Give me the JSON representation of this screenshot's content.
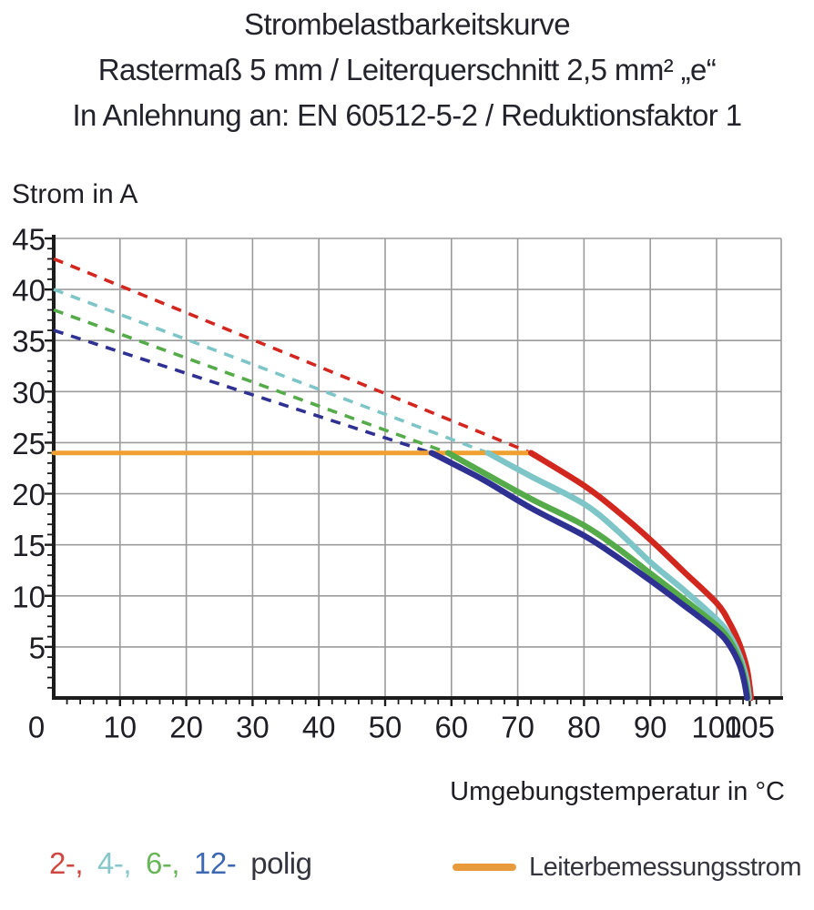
{
  "title": {
    "line1": "Strombelastbarkeitskurve",
    "line2": "Rastermaß 5 mm / Leiterquerschnitt 2,5 mm² „e“",
    "line3": "In Anlehnung an: EN 60512-5-2 / Reduktionsfaktor 1"
  },
  "chart_data": {
    "type": "line",
    "title": "Strombelastbarkeitskurve",
    "ylabel": "Strom in A",
    "xlabel": "Umgebungstemperatur in °C",
    "xlim": [
      0,
      110
    ],
    "ylim": [
      0,
      45
    ],
    "x_ticks": [
      10,
      20,
      30,
      40,
      50,
      60,
      70,
      80,
      90,
      100,
      105
    ],
    "y_ticks": [
      0,
      5,
      10,
      15,
      20,
      25,
      30,
      35,
      40,
      45
    ],
    "grid": true,
    "grid_color": "#9b9b9b",
    "axis_color": "#1c1c1c",
    "x_minor_tick_step": 2,
    "y_minor_tick_step": 1,
    "series": [
      {
        "name": "2-polig",
        "color": "#d2271f",
        "dashed": [
          [
            0,
            43
          ],
          [
            72,
            24
          ]
        ],
        "solid": [
          [
            72,
            24
          ],
          [
            80,
            20.8
          ],
          [
            85,
            18.3
          ],
          [
            90,
            15.5
          ],
          [
            95,
            12.4
          ],
          [
            100,
            9.3
          ],
          [
            102,
            7.3
          ],
          [
            103.5,
            5.2
          ],
          [
            104.6,
            2.8
          ],
          [
            105.2,
            0
          ]
        ]
      },
      {
        "name": "4-polig",
        "color": "#7ec5c8",
        "dashed": [
          [
            0,
            40
          ],
          [
            65.5,
            24
          ]
        ],
        "solid": [
          [
            65.5,
            24
          ],
          [
            72,
            21.7
          ],
          [
            80,
            19.0
          ],
          [
            85,
            16.4
          ],
          [
            90,
            13.3
          ],
          [
            95,
            10.6
          ],
          [
            100,
            7.7
          ],
          [
            102,
            6.1
          ],
          [
            103.5,
            4.1
          ],
          [
            104.5,
            1.9
          ],
          [
            104.9,
            0
          ]
        ]
      },
      {
        "name": "6-polig",
        "color": "#55ab49",
        "dashed": [
          [
            0,
            38
          ],
          [
            59.5,
            24
          ]
        ],
        "solid": [
          [
            59.5,
            24
          ],
          [
            65,
            22.0
          ],
          [
            72,
            19.5
          ],
          [
            80,
            16.9
          ],
          [
            85,
            14.7
          ],
          [
            90,
            12.2
          ],
          [
            95,
            9.7
          ],
          [
            100,
            7.1
          ],
          [
            102,
            5.6
          ],
          [
            103.5,
            3.6
          ],
          [
            104.3,
            1.7
          ],
          [
            104.7,
            0
          ]
        ]
      },
      {
        "name": "12-polig",
        "color": "#2e3192",
        "dashed": [
          [
            0,
            36
          ],
          [
            57,
            24
          ]
        ],
        "solid": [
          [
            57,
            24
          ],
          [
            60,
            23.0
          ],
          [
            65,
            21.3
          ],
          [
            72,
            18.6
          ],
          [
            80,
            15.9
          ],
          [
            85,
            13.8
          ],
          [
            90,
            11.5
          ],
          [
            95,
            9.1
          ],
          [
            100,
            6.6
          ],
          [
            102,
            5.1
          ],
          [
            103.5,
            3.2
          ],
          [
            104.2,
            1.5
          ],
          [
            104.6,
            0
          ]
        ]
      },
      {
        "name": "Leiterbemessungsstrom",
        "color": "#efa030",
        "solid": [
          [
            0,
            24
          ],
          [
            72,
            24
          ]
        ]
      }
    ]
  },
  "legend": {
    "poles": {
      "items": [
        {
          "label": "2-,",
          "color": "#cf4742"
        },
        {
          "label": "4-,",
          "color": "#87c7cb"
        },
        {
          "label": "6-,",
          "color": "#69b559"
        },
        {
          "label": "12-",
          "color": "#3d68b2"
        },
        {
          "label": "polig",
          "color": "#35353f"
        }
      ]
    },
    "line": {
      "label": "Leiterbemessungsstrom",
      "color": "#e89b3c"
    }
  }
}
